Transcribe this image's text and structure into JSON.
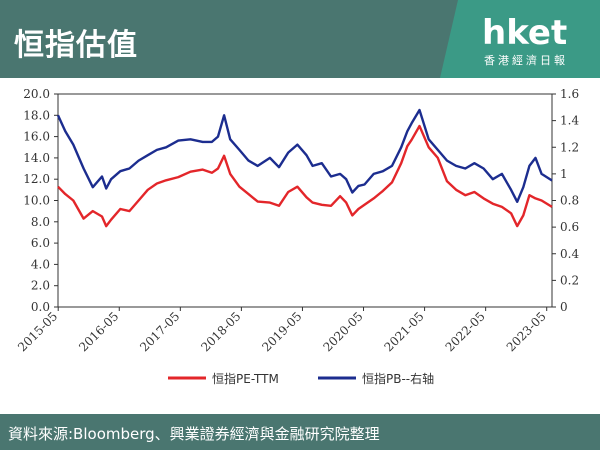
{
  "header": {
    "title": "恒指估值"
  },
  "logo": {
    "brand": "hket",
    "tagline": "香港經濟日報"
  },
  "footer": {
    "source": "資料來源:Bloomberg、興業證券經濟與金融研究院整理"
  },
  "colors": {
    "header_bg": "#4a7670",
    "pe_line": "#e3262a",
    "pb_line": "#1c2d8f",
    "logo_accent": "#3b9a86"
  },
  "chart_data": {
    "type": "line",
    "title": "",
    "xlabel": "",
    "ylabel": "",
    "x_ticks": [
      "2015-05",
      "2016-05",
      "2017-05",
      "2018-05",
      "2019-05",
      "2020-05",
      "2021-05",
      "2022-05",
      "2023-05"
    ],
    "y_left_ticks": [
      "0.0",
      "2.0",
      "4.0",
      "6.0",
      "8.0",
      "10.0",
      "12.0",
      "14.0",
      "16.0",
      "18.0",
      "20.0"
    ],
    "y_right_ticks": [
      "0",
      "0.2",
      "0.4",
      "0.6",
      "0.8",
      "1",
      "1.2",
      "1.4",
      "1.6"
    ],
    "y_left_lim": [
      0,
      20
    ],
    "y_right_lim": [
      0,
      1.6
    ],
    "x_lim": [
      2015.33,
      2023.42
    ],
    "grid": false,
    "legend_position": "bottom",
    "series": [
      {
        "name": "恒指PE-TTM",
        "axis": "left",
        "x": [
          2015.33,
          2015.45,
          2015.58,
          2015.75,
          2015.9,
          2016.05,
          2016.12,
          2016.2,
          2016.35,
          2016.5,
          2016.65,
          2016.8,
          2016.95,
          2017.1,
          2017.3,
          2017.5,
          2017.7,
          2017.85,
          2017.95,
          2018.05,
          2018.15,
          2018.3,
          2018.45,
          2018.6,
          2018.8,
          2018.95,
          2019.1,
          2019.25,
          2019.4,
          2019.5,
          2019.65,
          2019.8,
          2019.95,
          2020.05,
          2020.15,
          2020.25,
          2020.35,
          2020.5,
          2020.65,
          2020.8,
          2020.95,
          2021.05,
          2021.12,
          2021.25,
          2021.4,
          2021.55,
          2021.7,
          2021.85,
          2022.0,
          2022.15,
          2022.3,
          2022.45,
          2022.6,
          2022.75,
          2022.85,
          2022.95,
          2023.05,
          2023.15,
          2023.25,
          2023.42
        ],
        "values": [
          11.3,
          10.6,
          10.0,
          8.3,
          9.0,
          8.5,
          7.6,
          8.2,
          9.2,
          9.0,
          10.0,
          11.0,
          11.6,
          11.9,
          12.2,
          12.7,
          12.9,
          12.6,
          13.0,
          14.2,
          12.5,
          11.3,
          10.6,
          9.9,
          9.8,
          9.5,
          10.8,
          11.3,
          10.3,
          9.8,
          9.6,
          9.5,
          10.4,
          9.8,
          8.6,
          9.2,
          9.6,
          10.2,
          10.9,
          11.7,
          13.5,
          15.1,
          15.7,
          17.0,
          15.0,
          14.0,
          11.8,
          11.0,
          10.5,
          10.8,
          10.2,
          9.7,
          9.4,
          8.8,
          7.6,
          8.6,
          10.5,
          10.2,
          10.0,
          9.4
        ]
      },
      {
        "name": "恒指PB--右轴",
        "axis": "right",
        "x": [
          2015.33,
          2015.45,
          2015.58,
          2015.75,
          2015.9,
          2016.05,
          2016.12,
          2016.2,
          2016.35,
          2016.5,
          2016.65,
          2016.8,
          2016.95,
          2017.1,
          2017.3,
          2017.5,
          2017.7,
          2017.85,
          2017.95,
          2018.05,
          2018.15,
          2018.3,
          2018.45,
          2018.6,
          2018.8,
          2018.95,
          2019.1,
          2019.25,
          2019.4,
          2019.5,
          2019.65,
          2019.8,
          2019.95,
          2020.05,
          2020.15,
          2020.25,
          2020.35,
          2020.5,
          2020.65,
          2020.8,
          2020.95,
          2021.05,
          2021.12,
          2021.25,
          2021.4,
          2021.55,
          2021.7,
          2021.85,
          2022.0,
          2022.15,
          2022.3,
          2022.45,
          2022.6,
          2022.75,
          2022.85,
          2022.95,
          2023.05,
          2023.15,
          2023.25,
          2023.42
        ],
        "values": [
          1.44,
          1.32,
          1.22,
          1.04,
          0.9,
          0.98,
          0.89,
          0.96,
          1.02,
          1.04,
          1.1,
          1.14,
          1.18,
          1.2,
          1.25,
          1.26,
          1.24,
          1.24,
          1.28,
          1.44,
          1.26,
          1.18,
          1.1,
          1.06,
          1.12,
          1.05,
          1.16,
          1.22,
          1.14,
          1.06,
          1.08,
          0.98,
          1.0,
          0.96,
          0.86,
          0.91,
          0.92,
          1.0,
          1.02,
          1.06,
          1.2,
          1.32,
          1.38,
          1.48,
          1.26,
          1.18,
          1.1,
          1.06,
          1.04,
          1.08,
          1.04,
          0.96,
          1.0,
          0.88,
          0.79,
          0.9,
          1.06,
          1.12,
          1.0,
          0.95
        ]
      }
    ]
  }
}
